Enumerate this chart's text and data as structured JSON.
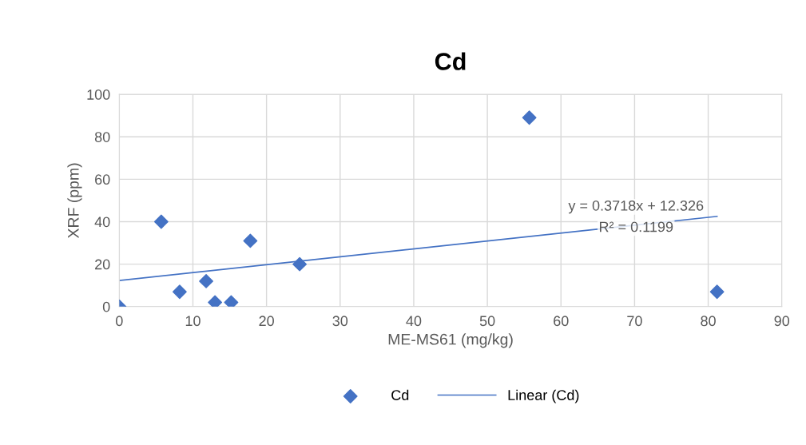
{
  "chart_data": {
    "type": "scatter",
    "title": "Cd",
    "xlabel": "ME-MS61 (mg/kg)",
    "ylabel": "XRF (ppm)",
    "x": [
      0,
      5.7,
      8.2,
      11.8,
      13,
      15.2,
      17.8,
      24.5,
      55.7,
      81.2
    ],
    "series": [
      {
        "name": "Cd",
        "color": "#4472c4",
        "marker": "diamond",
        "values": [
          0,
          40,
          7,
          12,
          2,
          2,
          31,
          20,
          89,
          7
        ]
      },
      {
        "name": "Linear (Cd)",
        "type": "line",
        "color": "#4472c4",
        "line_style": "solid",
        "x": [
          0,
          81.2
        ],
        "values": [
          12.3,
          42.5
        ]
      }
    ],
    "annotations": [
      "y = 0.3718x + 12.326",
      "R² = 0.1199"
    ],
    "xlim": [
      0,
      90
    ],
    "xticks": [
      0,
      10,
      20,
      30,
      40,
      50,
      60,
      70,
      80,
      90
    ],
    "ylim": [
      0,
      100
    ],
    "yticks": [
      0,
      20,
      40,
      60,
      80,
      100
    ],
    "grid": true,
    "legend": "bottom"
  }
}
